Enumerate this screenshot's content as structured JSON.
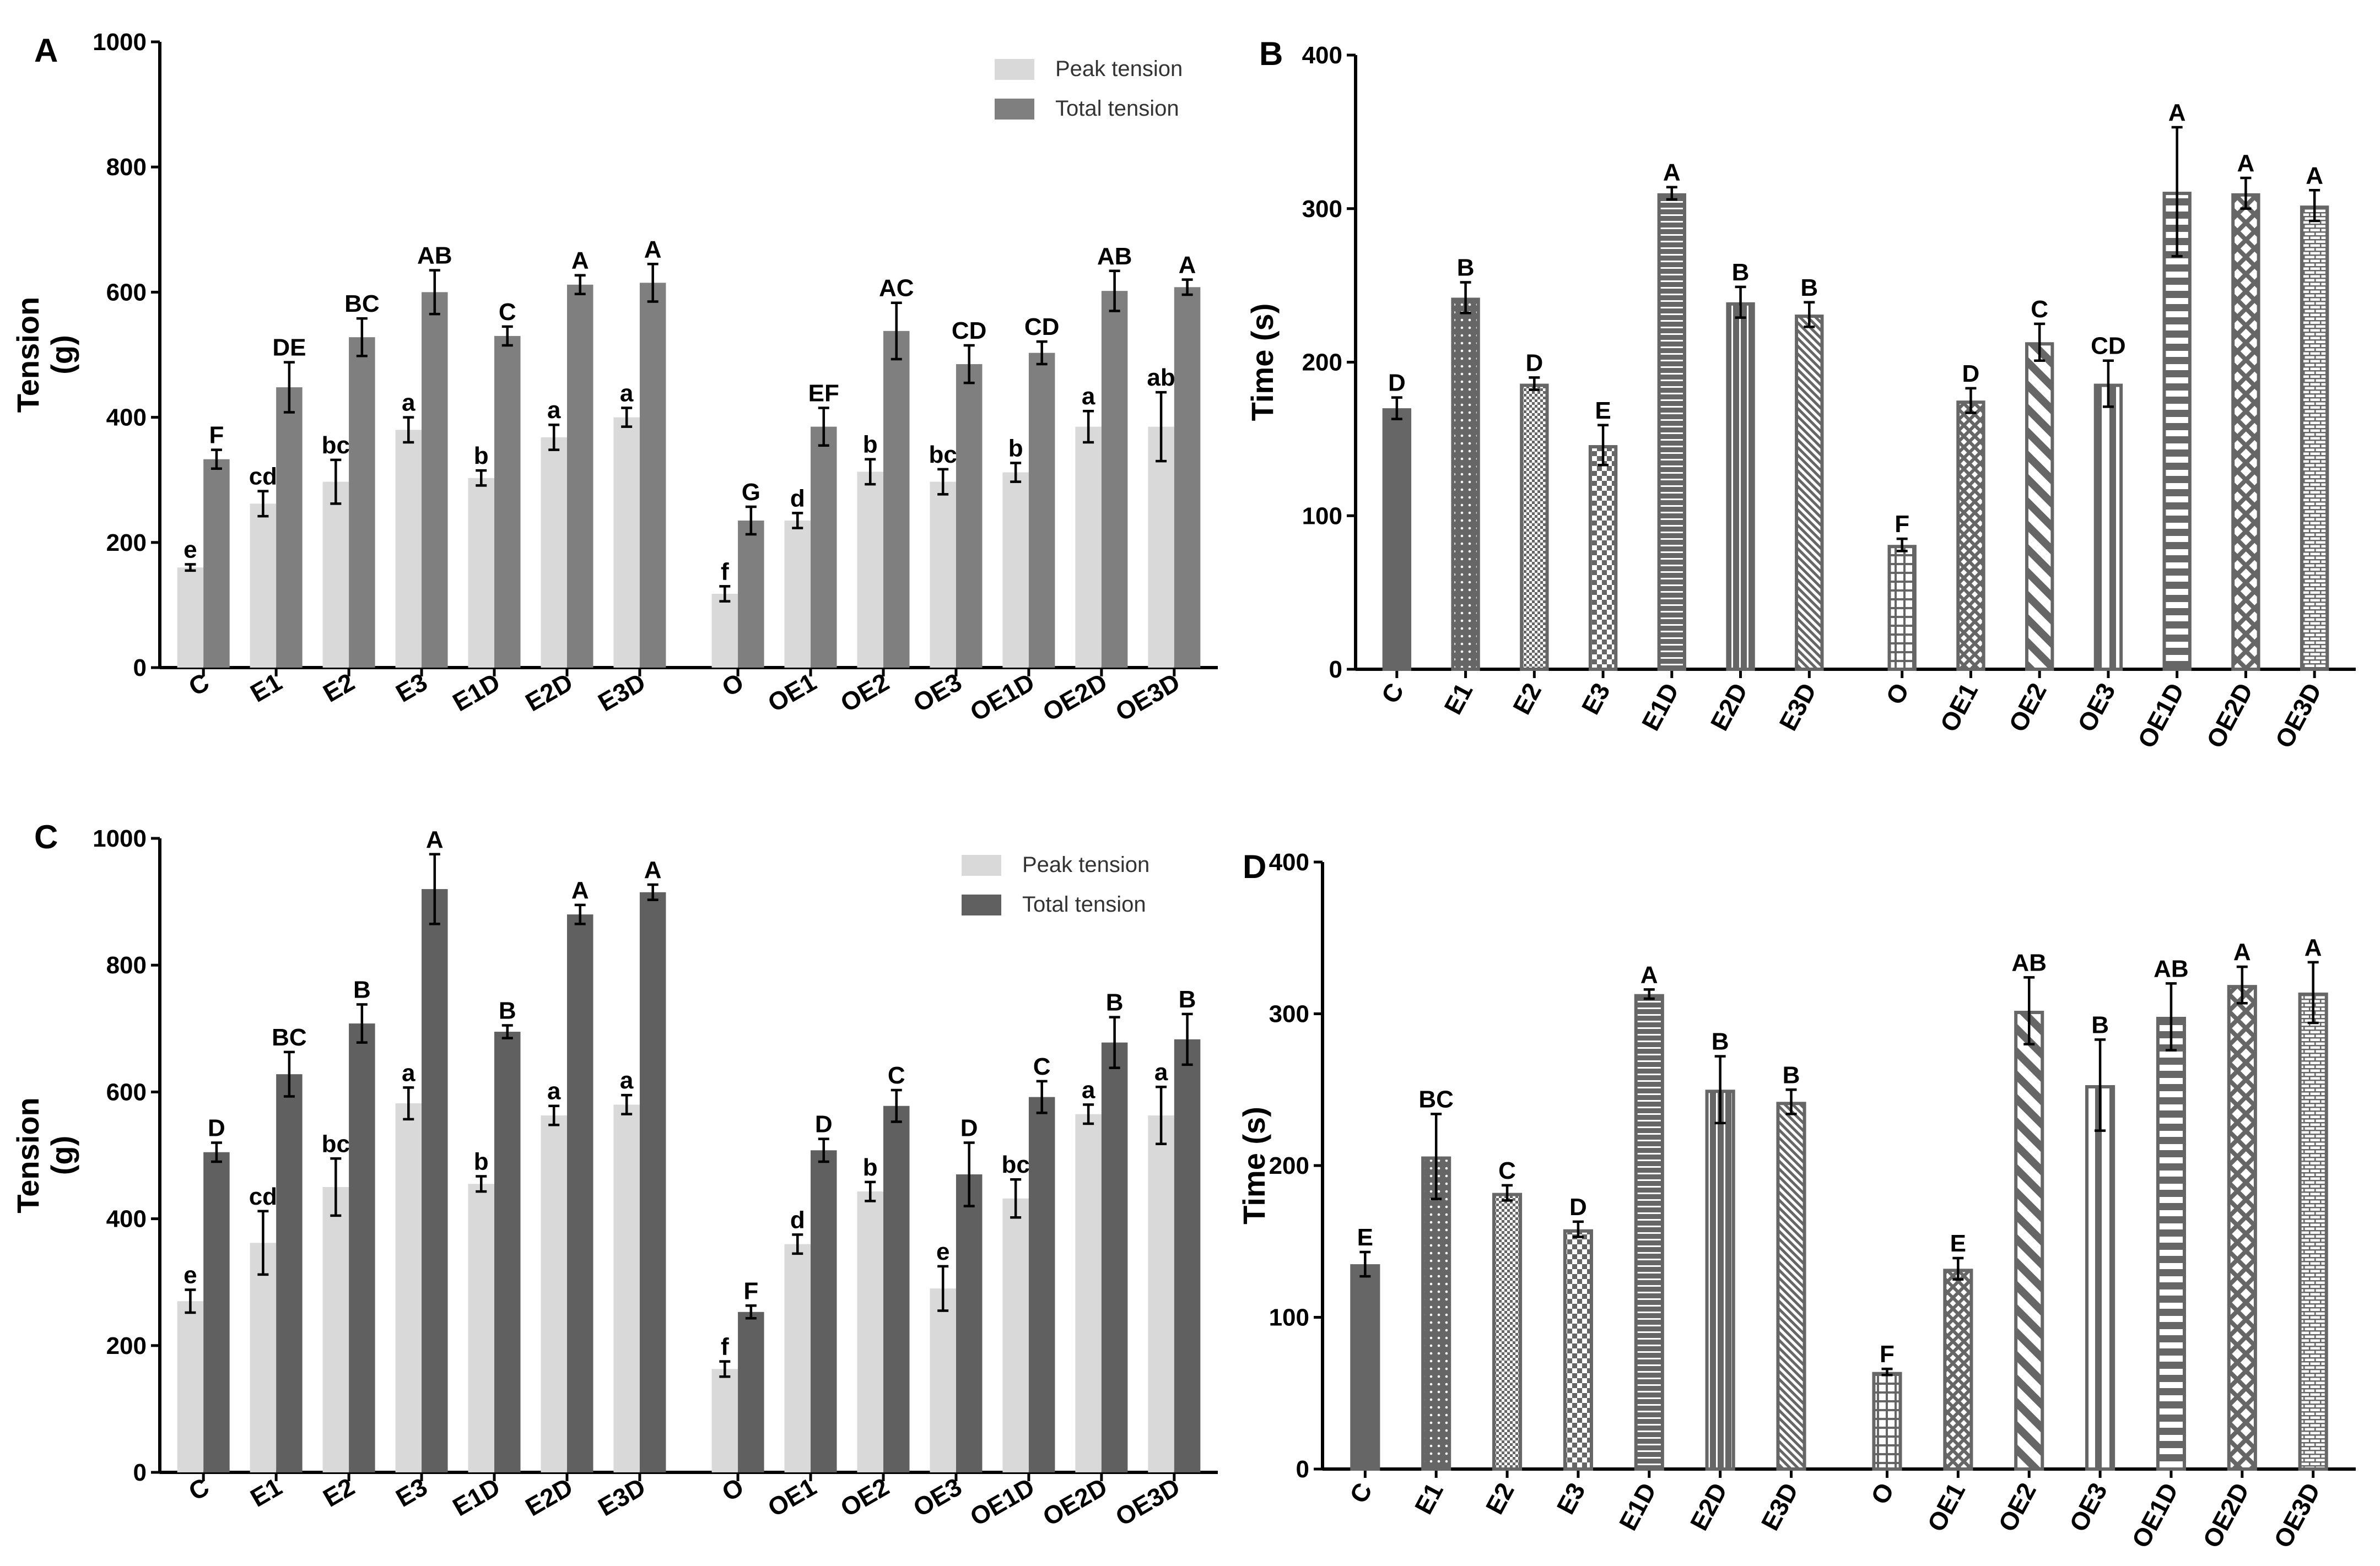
{
  "chart_data": [
    {
      "panel": "A",
      "type": "bar",
      "ylabel": "Tension\n(g)",
      "ylim": [
        0,
        1000
      ],
      "yticks": [
        0,
        200,
        400,
        600,
        800,
        1000
      ],
      "categories": [
        "C",
        "E1",
        "E2",
        "E3",
        "E1D",
        "E2D",
        "E3D",
        "O",
        "OE1",
        "OE2",
        "OE3",
        "OE1D",
        "OE2D",
        "OE3D"
      ],
      "legend_position": "top-right",
      "series": [
        {
          "name": "Peak tension",
          "color": "#d9d9d9",
          "values": [
            160,
            262,
            297,
            380,
            303,
            368,
            400,
            118,
            235,
            313,
            297,
            312,
            385,
            385
          ],
          "errors": [
            5,
            20,
            35,
            20,
            12,
            20,
            15,
            12,
            12,
            20,
            20,
            15,
            25,
            55
          ],
          "letters": [
            "e",
            "cd",
            "bc",
            "a",
            "b",
            "a",
            "a",
            "f",
            "d",
            "b",
            "bc",
            "b",
            "a",
            "ab"
          ]
        },
        {
          "name": "Total tension",
          "color": "#7f7f7f",
          "values": [
            333,
            448,
            528,
            600,
            530,
            612,
            615,
            235,
            385,
            538,
            485,
            503,
            602,
            608
          ],
          "errors": [
            15,
            40,
            30,
            35,
            15,
            15,
            30,
            22,
            30,
            45,
            30,
            18,
            32,
            12
          ],
          "letters": [
            "F",
            "DE",
            "BC",
            "AB",
            "C",
            "A",
            "A",
            "G",
            "EF",
            "AC",
            "CD",
            "CD",
            "AB",
            "A"
          ]
        }
      ]
    },
    {
      "panel": "B",
      "type": "bar",
      "ylabel": "Time (s)",
      "ylim": [
        0,
        400
      ],
      "yticks": [
        0,
        100,
        200,
        300,
        400
      ],
      "categories": [
        "C",
        "E1",
        "E2",
        "E3",
        "E1D",
        "E2D",
        "E3D",
        "O",
        "OE1",
        "OE2",
        "OE3",
        "OE1D",
        "OE2D",
        "OE3D"
      ],
      "series": [
        {
          "name": "Time",
          "color": "#666666",
          "values": [
            170,
            242,
            186,
            146,
            310,
            239,
            231,
            81,
            175,
            213,
            186,
            311,
            310,
            302
          ],
          "errors": [
            7,
            10,
            4,
            13,
            4,
            10,
            8,
            4,
            8,
            12,
            15,
            42,
            10,
            10
          ],
          "letters": [
            "D",
            "B",
            "D",
            "E",
            "A",
            "B",
            "B",
            "F",
            "D",
            "C",
            "CD",
            "A",
            "A",
            "A"
          ],
          "patterns": [
            "solid",
            "dots",
            "checker-fine",
            "checker",
            "hstripes",
            "vstripes",
            "diag-fine",
            "grid",
            "diamond",
            "diag-wide",
            "vstripes-wide",
            "hstripes-wide",
            "diamond-big",
            "brick"
          ]
        }
      ]
    },
    {
      "panel": "C",
      "type": "bar",
      "ylabel": "Tension\n(g)",
      "ylim": [
        0,
        1000
      ],
      "yticks": [
        0,
        200,
        400,
        600,
        800,
        1000
      ],
      "categories": [
        "C",
        "E1",
        "E2",
        "E3",
        "E1D",
        "E2D",
        "E3D",
        "O",
        "OE1",
        "OE2",
        "OE3",
        "OE1D",
        "OE2D",
        "OE3D"
      ],
      "legend_position": "top-right",
      "series": [
        {
          "name": "Peak tension",
          "color": "#d9d9d9",
          "values": [
            270,
            362,
            450,
            582,
            455,
            563,
            580,
            163,
            360,
            443,
            290,
            432,
            565,
            563
          ],
          "errors": [
            18,
            50,
            45,
            25,
            12,
            15,
            15,
            12,
            15,
            15,
            35,
            30,
            15,
            45
          ],
          "letters": [
            "e",
            "cd",
            "bc",
            "a",
            "b",
            "a",
            "a",
            "f",
            "d",
            "b",
            "e",
            "bc",
            "a",
            "a"
          ]
        },
        {
          "name": "Total tension",
          "color": "#606060",
          "values": [
            505,
            628,
            708,
            920,
            695,
            880,
            915,
            253,
            508,
            578,
            470,
            592,
            678,
            683
          ],
          "errors": [
            15,
            35,
            30,
            55,
            10,
            15,
            12,
            10,
            18,
            25,
            50,
            25,
            40,
            40
          ],
          "letters": [
            "D",
            "BC",
            "B",
            "A",
            "B",
            "A",
            "A",
            "F",
            "D",
            "C",
            "D",
            "C",
            "B",
            "B"
          ]
        }
      ]
    },
    {
      "panel": "D",
      "type": "bar",
      "ylabel": "Time (s)",
      "ylim": [
        0,
        400
      ],
      "yticks": [
        0,
        100,
        200,
        300,
        400
      ],
      "categories": [
        "C",
        "E1",
        "E2",
        "E3",
        "E1D",
        "E2D",
        "E3D",
        "O",
        "OE1",
        "OE2",
        "OE3",
        "OE1D",
        "OE2D",
        "OE3D"
      ],
      "series": [
        {
          "name": "Time",
          "color": "#666666",
          "values": [
            135,
            206,
            182,
            158,
            313,
            250,
            242,
            64,
            132,
            302,
            253,
            298,
            319,
            314
          ],
          "errors": [
            8,
            28,
            5,
            5,
            3,
            22,
            8,
            2,
            7,
            22,
            30,
            22,
            12,
            20
          ],
          "letters": [
            "E",
            "BC",
            "C",
            "D",
            "A",
            "B",
            "B",
            "F",
            "E",
            "AB",
            "B",
            "AB",
            "A",
            "A"
          ],
          "patterns": [
            "solid",
            "dots",
            "checker-fine",
            "checker",
            "hstripes",
            "vstripes",
            "diag-fine",
            "grid",
            "diamond",
            "diag-wide",
            "vstripes-wide",
            "hstripes-wide",
            "diamond-big",
            "brick"
          ]
        }
      ]
    }
  ]
}
